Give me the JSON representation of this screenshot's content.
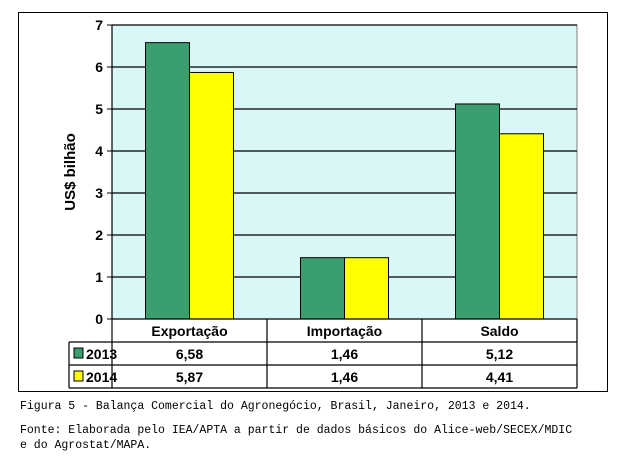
{
  "chart_data": {
    "type": "bar",
    "categories": [
      "Exportação",
      "Importação",
      "Saldo"
    ],
    "series": [
      {
        "name": "2013",
        "values": [
          6.58,
          1.46,
          5.12
        ],
        "labels": [
          "6,58",
          "1,46",
          "5,12"
        ],
        "color": "#3a9e6f"
      },
      {
        "name": "2014",
        "values": [
          5.87,
          1.46,
          4.41
        ],
        "labels": [
          "5,87",
          "1,46",
          "4,41"
        ],
        "color": "#ffff00"
      }
    ],
    "ylabel": "US$ bilhão",
    "ylim": [
      0,
      7
    ],
    "yticks": [
      "0",
      "1",
      "2",
      "3",
      "4",
      "5",
      "6",
      "7"
    ],
    "grid": true,
    "plot_background": "#d9f7f7",
    "legend": "data-table"
  },
  "caption": {
    "title": "Figura 5 - Balança Comercial do Agronegócio, Brasil, Janeiro, 2013 e 2014.",
    "source_line1": "Fonte: Elaborada pelo IEA/APTA a partir de dados básicos do Alice-web/SECEX/MDIC",
    "source_line2": "e do Agrostat/MAPA."
  }
}
